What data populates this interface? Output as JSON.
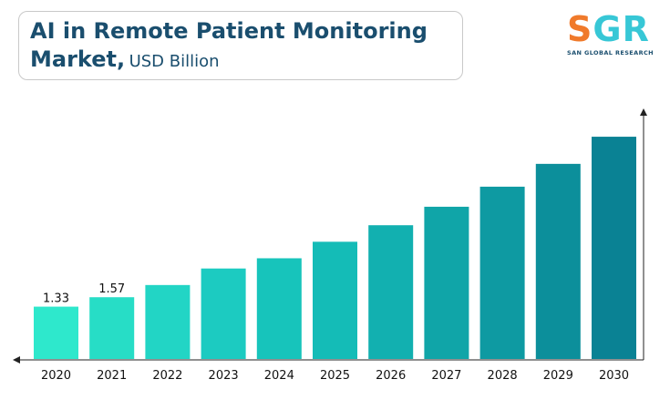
{
  "header": {
    "title_line1": "AI in Remote Patient Monitoring",
    "title_line2_bold": "Market,",
    "title_unit": "USD Billion"
  },
  "logo": {
    "letters": "SGR",
    "subtitle": "SAN GLOBAL RESEARCH"
  },
  "chart_data": {
    "type": "bar",
    "categories": [
      "2020",
      "2021",
      "2022",
      "2023",
      "2024",
      "2025",
      "2026",
      "2027",
      "2028",
      "2029",
      "2030"
    ],
    "values": [
      1.33,
      1.57,
      1.88,
      2.3,
      2.56,
      2.98,
      3.4,
      3.87,
      4.38,
      4.96,
      5.65
    ],
    "data_labels": [
      "1.33",
      "1.57",
      "",
      "",
      "",
      "",
      "",
      "",
      "",
      "",
      ""
    ],
    "ylim": [
      0,
      6.3
    ],
    "grid": false,
    "colors": [
      "#2ee8cc",
      "#27ddc6",
      "#22d5c5",
      "#1ccbc1",
      "#17c4bb",
      "#14bcb7",
      "#12b0b0",
      "#10a5a8",
      "#0e9aa2",
      "#0c8f9b",
      "#0a8294"
    ]
  }
}
